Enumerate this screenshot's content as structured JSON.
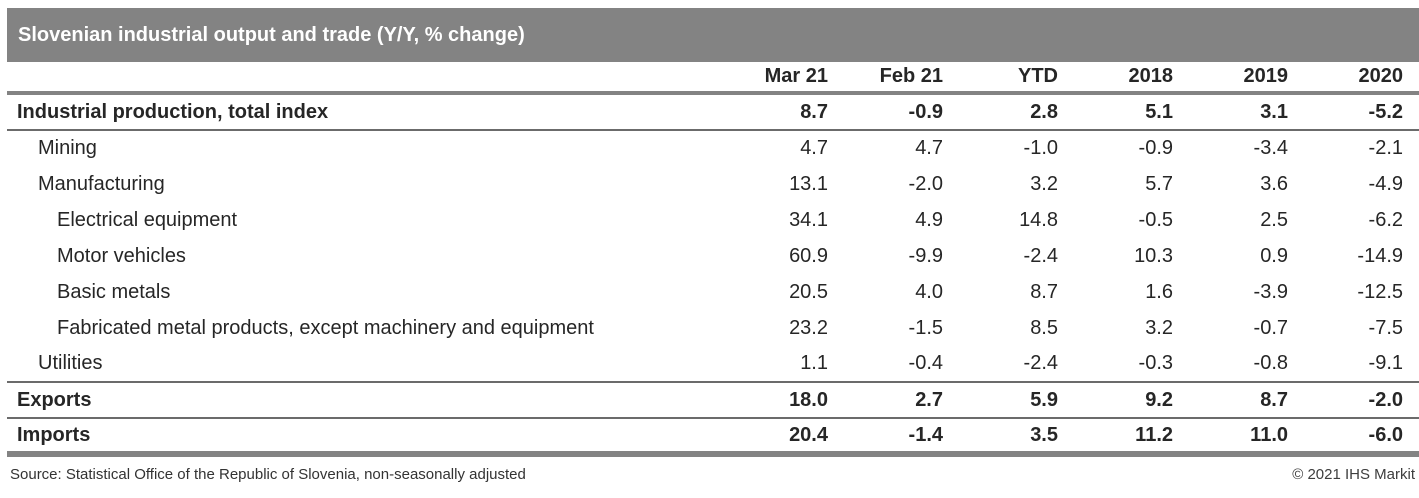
{
  "title_bar": {
    "title": "Slovenian industrial output and trade (Y/Y, % change)"
  },
  "table": {
    "columns": [
      "Mar 21",
      "Feb 21",
      "YTD",
      "2018",
      "2019",
      "2020"
    ],
    "rows": [
      {
        "label": "Industrial production, total index",
        "indent": 0,
        "bold": true,
        "values": [
          "8.7",
          "-0.9",
          "2.8",
          "5.1",
          "3.1",
          "-5.2"
        ]
      },
      {
        "label": "Mining",
        "indent": 1,
        "bold": false,
        "values": [
          "4.7",
          "4.7",
          "-1.0",
          "-0.9",
          "-3.4",
          "-2.1"
        ]
      },
      {
        "label": "Manufacturing",
        "indent": 1,
        "bold": false,
        "values": [
          "13.1",
          "-2.0",
          "3.2",
          "5.7",
          "3.6",
          "-4.9"
        ]
      },
      {
        "label": "Electrical equipment",
        "indent": 2,
        "bold": false,
        "values": [
          "34.1",
          "4.9",
          "14.8",
          "-0.5",
          "2.5",
          "-6.2"
        ]
      },
      {
        "label": "Motor vehicles",
        "indent": 2,
        "bold": false,
        "values": [
          "60.9",
          "-9.9",
          "-2.4",
          "10.3",
          "0.9",
          "-14.9"
        ]
      },
      {
        "label": "Basic metals",
        "indent": 2,
        "bold": false,
        "values": [
          "20.5",
          "4.0",
          "8.7",
          "1.6",
          "-3.9",
          "-12.5"
        ]
      },
      {
        "label": "Fabricated metal products, except machinery and equipment",
        "indent": 2,
        "bold": false,
        "values": [
          "23.2",
          "-1.5",
          "8.5",
          "3.2",
          "-0.7",
          "-7.5"
        ]
      },
      {
        "label": "Utilities",
        "indent": 1,
        "bold": false,
        "values": [
          "1.1",
          "-0.4",
          "-2.4",
          "-0.3",
          "-0.8",
          "-9.1"
        ]
      },
      {
        "label": "Exports",
        "indent": 0,
        "bold": true,
        "values": [
          "18.0",
          "2.7",
          "5.9",
          "9.2",
          "8.7",
          "-2.0"
        ]
      },
      {
        "label": "Imports",
        "indent": 0,
        "bold": true,
        "values": [
          "20.4",
          "-1.4",
          "3.5",
          "11.2",
          "11.0",
          "-6.0"
        ]
      }
    ]
  },
  "footer": {
    "source": "Source: Statistical Office of the Republic of Slovenia, non-seasonally adjusted",
    "copyright": "© 2021 IHS Markit"
  },
  "colors": {
    "title_bar_bg": "#838383",
    "title_text": "#ffffff",
    "rule_gray": "#838383",
    "rule_dark": "#6b6b6b",
    "body_text": "#262626"
  },
  "chart_data": {
    "type": "table",
    "title": "Slovenian industrial output and trade (Y/Y, % change)",
    "columns": [
      "Mar 21",
      "Feb 21",
      "YTD",
      "2018",
      "2019",
      "2020"
    ],
    "rows": [
      {
        "label": "Industrial production, total index",
        "values": [
          8.7,
          -0.9,
          2.8,
          5.1,
          3.1,
          -5.2
        ]
      },
      {
        "label": "Mining",
        "values": [
          4.7,
          4.7,
          -1.0,
          -0.9,
          -3.4,
          -2.1
        ]
      },
      {
        "label": "Manufacturing",
        "values": [
          13.1,
          -2.0,
          3.2,
          5.7,
          3.6,
          -4.9
        ]
      },
      {
        "label": "Electrical equipment",
        "values": [
          34.1,
          4.9,
          14.8,
          -0.5,
          2.5,
          -6.2
        ]
      },
      {
        "label": "Motor vehicles",
        "values": [
          60.9,
          -9.9,
          -2.4,
          10.3,
          0.9,
          -14.9
        ]
      },
      {
        "label": "Basic metals",
        "values": [
          20.5,
          4.0,
          8.7,
          1.6,
          -3.9,
          -12.5
        ]
      },
      {
        "label": "Fabricated metal products, except machinery and equipment",
        "values": [
          23.2,
          -1.5,
          8.5,
          3.2,
          -0.7,
          -7.5
        ]
      },
      {
        "label": "Utilities",
        "values": [
          1.1,
          -0.4,
          -2.4,
          -0.3,
          -0.8,
          -9.1
        ]
      },
      {
        "label": "Exports",
        "values": [
          18.0,
          2.7,
          5.9,
          9.2,
          8.7,
          -2.0
        ]
      },
      {
        "label": "Imports",
        "values": [
          20.4,
          -1.4,
          3.5,
          11.2,
          11.0,
          -6.0
        ]
      }
    ],
    "notes": "Source: Statistical Office of the Republic of Slovenia, non-seasonally adjusted",
    "units": "Y/Y % change"
  }
}
